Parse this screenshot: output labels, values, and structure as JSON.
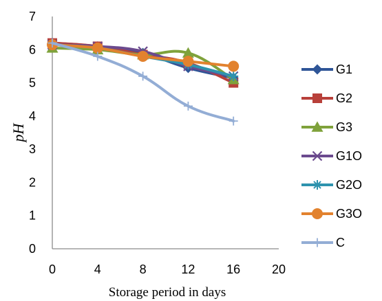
{
  "chart_data": {
    "type": "line",
    "x": [
      0,
      4,
      8,
      12,
      16
    ],
    "xlabel": "Storage period in days",
    "ylabel": "pH",
    "xlim": [
      0,
      20
    ],
    "ylim": [
      0,
      7
    ],
    "xticks": [
      "0",
      "4",
      "8",
      "12",
      "16",
      "20"
    ],
    "yticks": [
      "0",
      "1",
      "2",
      "3",
      "4",
      "5",
      "6",
      "7"
    ],
    "grid": false,
    "legend_position": "right",
    "series": [
      {
        "name": "G1",
        "values": [
          6.2,
          6.1,
          5.9,
          5.45,
          5.15
        ],
        "color": "#2E5597",
        "marker": "diamond"
      },
      {
        "name": "G2",
        "values": [
          6.2,
          6.1,
          5.85,
          5.6,
          5.0
        ],
        "color": "#B8403A",
        "marker": "square"
      },
      {
        "name": "G3",
        "values": [
          6.05,
          6.0,
          5.85,
          5.9,
          5.1
        ],
        "color": "#7FA23B",
        "marker": "triangle"
      },
      {
        "name": "G1O",
        "values": [
          6.15,
          6.1,
          5.95,
          5.5,
          5.2
        ],
        "color": "#6B4A8E",
        "marker": "x"
      },
      {
        "name": "G2O",
        "values": [
          6.15,
          6.05,
          5.8,
          5.55,
          5.2
        ],
        "color": "#2E93AE",
        "marker": "star"
      },
      {
        "name": "G3O",
        "values": [
          6.15,
          6.05,
          5.8,
          5.65,
          5.5
        ],
        "color": "#E2822E",
        "marker": "circle"
      },
      {
        "name": "C",
        "values": [
          6.2,
          5.8,
          5.2,
          4.3,
          3.85
        ],
        "color": "#93ADD5",
        "marker": "plus"
      }
    ]
  }
}
